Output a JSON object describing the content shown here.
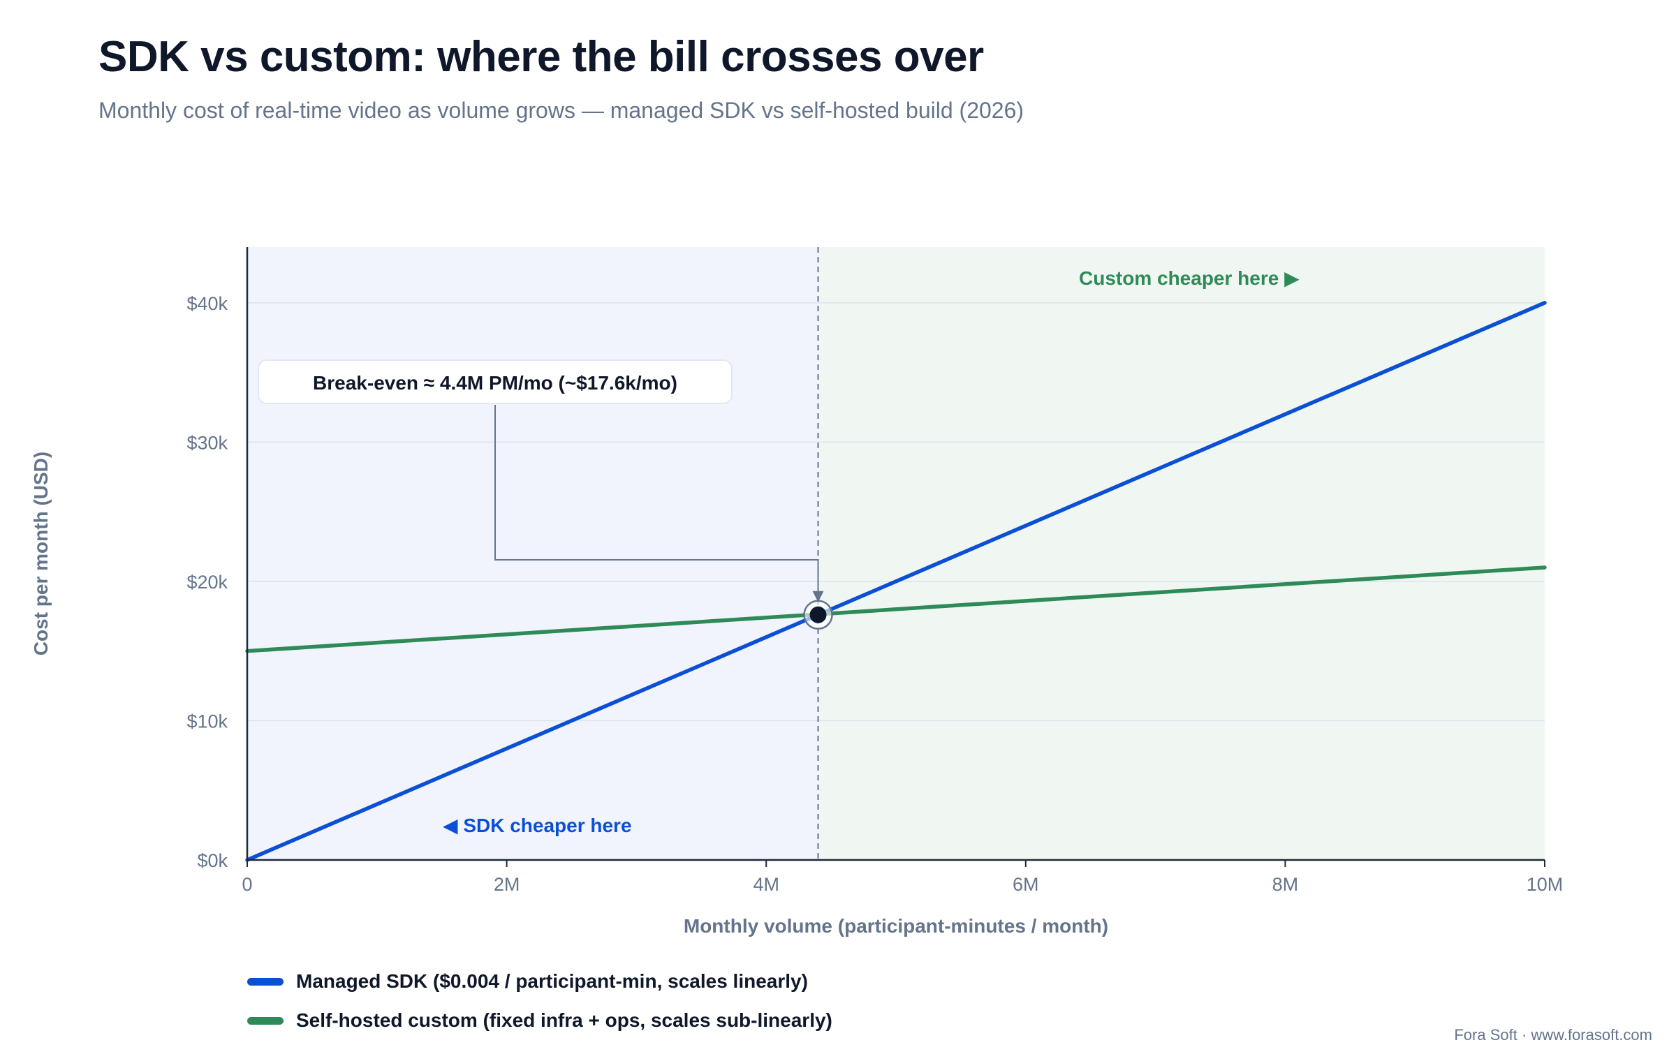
{
  "header": {
    "title": "SDK vs custom: where the bill crosses over",
    "subtitle": "Monthly cost of real-time video as volume grows — managed SDK vs self-hosted build (2026)"
  },
  "chart_data": {
    "type": "line",
    "xlabel": "Monthly volume (participant-minutes / month)",
    "ylabel": "Cost per month (USD)",
    "xlim": [
      0,
      10000000
    ],
    "ylim": [
      0,
      40000
    ],
    "x_ticks": [
      0,
      2000000,
      4000000,
      6000000,
      8000000,
      10000000
    ],
    "x_tick_labels": [
      "0",
      "2M",
      "4M",
      "6M",
      "8M",
      "10M"
    ],
    "y_ticks": [
      0,
      10000,
      20000,
      30000,
      40000
    ],
    "y_tick_labels": [
      "$0k",
      "$10k",
      "$20k",
      "$30k",
      "$40k"
    ],
    "grid": true,
    "series": [
      {
        "name": "Managed SDK ($0.004 / participant-min, scales linearly)",
        "color": "#0b4fd4",
        "x": [
          0,
          10000000
        ],
        "y": [
          0,
          40000
        ]
      },
      {
        "name": "Self-hosted custom (fixed infra + ops, scales sub-linearly)",
        "color": "#2e8b57",
        "x": [
          0,
          10000000
        ],
        "y": [
          15000,
          21000
        ]
      }
    ],
    "break_even": {
      "x": 4400000,
      "y": 17600,
      "label": "Break-even ≈ 4.4M PM/mo (~$17.6k/mo)"
    },
    "regions": [
      {
        "label": "◀ SDK cheaper here",
        "color": "#0b4fd4",
        "fill": "#f1f4fd",
        "from": 0,
        "to": 4400000
      },
      {
        "label": "Custom cheaper here ▶",
        "color": "#2e8b57",
        "fill": "#f0f7f3",
        "from": 4400000,
        "to": 10000000
      }
    ]
  },
  "legend": [
    {
      "label": "Managed SDK ($0.004 / participant-min, scales linearly)",
      "color": "#0b4fd4"
    },
    {
      "label": "Self-hosted custom (fixed infra + ops, scales sub-linearly)",
      "color": "#2e8b57"
    }
  ],
  "footer": {
    "credit": "Fora Soft · www.forasoft.com"
  }
}
